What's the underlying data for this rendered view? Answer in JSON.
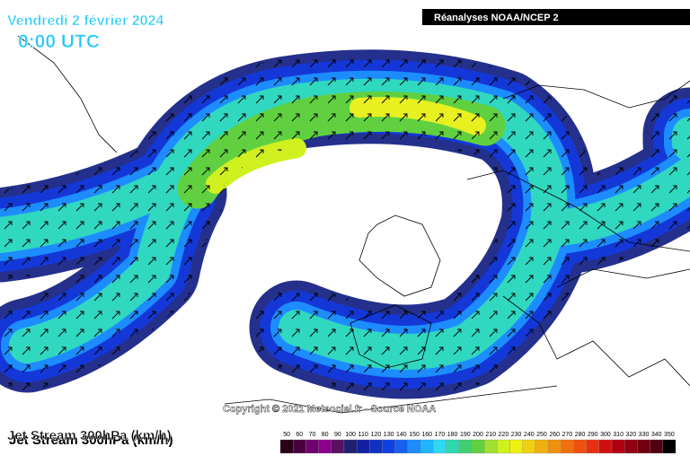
{
  "header": {
    "date": "Vendredi 2 février 2024",
    "time": "0:00 UTC",
    "source": "Réanalyses NOAA/NCEP 2"
  },
  "copyright": "Copyright © 2021 Meteociel.fr - Source NOAA",
  "map_title": "Jet Stream 300hPa (km/h)",
  "legend": {
    "values": [
      50,
      60,
      70,
      80,
      90,
      100,
      110,
      120,
      130,
      140,
      150,
      160,
      170,
      180,
      190,
      200,
      210,
      220,
      230,
      240,
      250,
      260,
      270,
      280,
      290,
      300,
      310,
      320,
      330,
      340,
      350
    ],
    "colors": [
      "#2a0018",
      "#4a0040",
      "#700070",
      "#8c008c",
      "#5a1060",
      "#202070",
      "#1020a0",
      "#1030c0",
      "#1040e0",
      "#1860f0",
      "#1c8cff",
      "#20b4ff",
      "#30d8f0",
      "#30d8b0",
      "#40d070",
      "#60d040",
      "#a0e030",
      "#d0f020",
      "#f0f010",
      "#f0d010",
      "#f0b010",
      "#f09010",
      "#f07010",
      "#f05010",
      "#e83010",
      "#d01010",
      "#b00010",
      "#900010",
      "#700010",
      "#500010",
      "#000000"
    ]
  }
}
